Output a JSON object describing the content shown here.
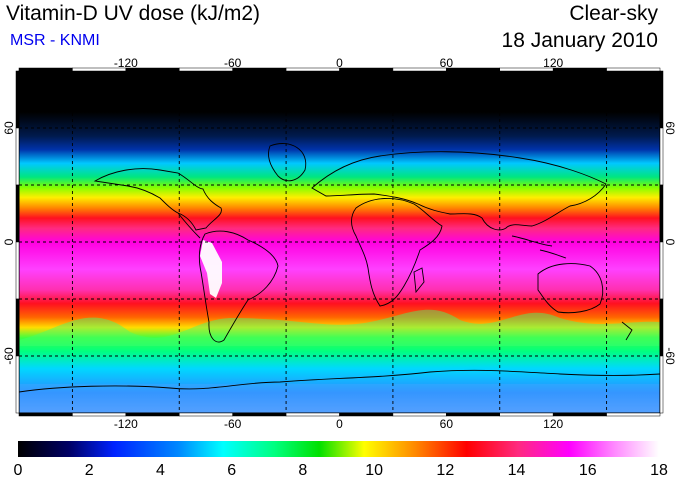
{
  "header": {
    "title": "Vitamin-D UV dose (kJ/m2)",
    "subtitle": "MSR - KNMI",
    "condition": "Clear-sky",
    "date": "18 January 2010"
  },
  "map": {
    "lon_ticks": [
      "-120",
      "-60",
      "0",
      "60",
      "120"
    ],
    "lat_ticks": [
      "60",
      "0",
      "-60"
    ],
    "lon_values": [
      -120,
      -60,
      0,
      60,
      120
    ],
    "lat_values": [
      60,
      0,
      -60
    ],
    "lon_range": [
      -180,
      180
    ],
    "lat_range": [
      -90,
      90
    ],
    "grid_lons": [
      -150,
      -90,
      -30,
      30,
      90,
      150
    ],
    "grid_lats": [
      60,
      30,
      0,
      -30,
      -60
    ]
  },
  "colorbar": {
    "labels": [
      "0",
      "2",
      "4",
      "6",
      "8",
      "10",
      "12",
      "14",
      "16",
      "18"
    ],
    "min": 0,
    "max": 18
  },
  "colors": {
    "subtitle": "#0000ee",
    "palette": [
      "#000000",
      "#001a66",
      "#0033ff",
      "#00c8ff",
      "#00e680",
      "#00e600",
      "#ffff00",
      "#ff6600",
      "#ff0000",
      "#ff2a80",
      "#ff00ff",
      "#ff88ff",
      "#ffffff"
    ]
  }
}
